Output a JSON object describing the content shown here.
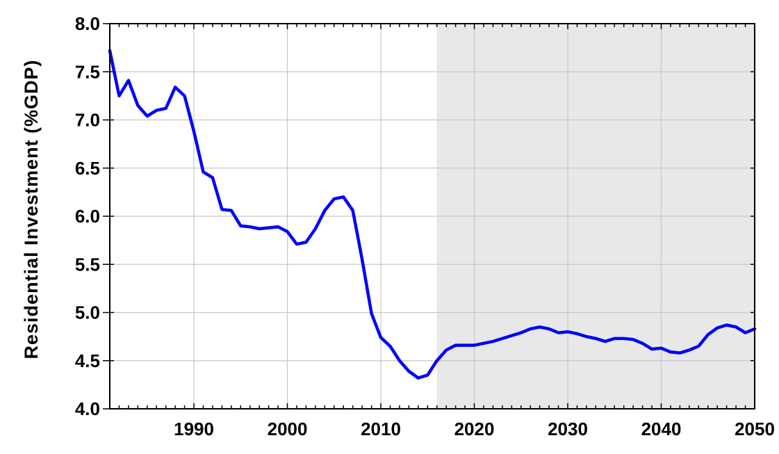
{
  "chart_data": {
    "type": "line",
    "title": "",
    "xlabel": "",
    "ylabel": "Residential Investment (%GDP)",
    "xlim": [
      1981,
      2050
    ],
    "ylim": [
      4.0,
      8.0
    ],
    "x_ticks": [
      1990,
      2000,
      2010,
      2020,
      2030,
      2040,
      2050
    ],
    "y_ticks": [
      4.0,
      4.5,
      5.0,
      5.5,
      6.0,
      6.5,
      7.0,
      7.5,
      8.0
    ],
    "y_tick_labels": [
      "4.0",
      "4.5",
      "5.0",
      "5.5",
      "6.0",
      "6.5",
      "7.0",
      "7.5",
      "8.0"
    ],
    "grid": true,
    "shaded_region": {
      "x_start": 2016,
      "x_end": 2050,
      "color": "#e8e8e8"
    },
    "series": [
      {
        "color": "#0000ff",
        "x": [
          1981,
          1982,
          1983,
          1984,
          1985,
          1986,
          1987,
          1988,
          1989,
          1990,
          1991,
          1992,
          1993,
          1994,
          1995,
          1996,
          1997,
          1998,
          1999,
          2000,
          2001,
          2002,
          2003,
          2004,
          2005,
          2006,
          2007,
          2008,
          2009,
          2010,
          2011,
          2012,
          2013,
          2014,
          2015,
          2016,
          2017,
          2018,
          2019,
          2020,
          2021,
          2022,
          2023,
          2024,
          2025,
          2026,
          2027,
          2028,
          2029,
          2030,
          2031,
          2032,
          2033,
          2034,
          2035,
          2036,
          2037,
          2038,
          2039,
          2040,
          2041,
          2042,
          2043,
          2044,
          2045,
          2046,
          2047,
          2048,
          2049,
          2050
        ],
        "y": [
          7.72,
          7.25,
          7.41,
          7.15,
          7.04,
          7.1,
          7.12,
          7.34,
          7.25,
          6.88,
          6.46,
          6.4,
          6.07,
          6.06,
          5.9,
          5.89,
          5.87,
          5.88,
          5.89,
          5.84,
          5.71,
          5.73,
          5.87,
          6.06,
          6.18,
          6.2,
          6.06,
          5.55,
          4.99,
          4.74,
          4.65,
          4.5,
          4.39,
          4.32,
          4.35,
          4.5,
          4.61,
          4.66,
          4.66,
          4.66,
          4.68,
          4.7,
          4.73,
          4.76,
          4.79,
          4.83,
          4.85,
          4.83,
          4.79,
          4.8,
          4.78,
          4.75,
          4.73,
          4.7,
          4.73,
          4.73,
          4.72,
          4.68,
          4.62,
          4.63,
          4.59,
          4.58,
          4.61,
          4.65,
          4.77,
          4.84,
          4.87,
          4.85,
          4.79,
          4.83
        ]
      }
    ]
  }
}
